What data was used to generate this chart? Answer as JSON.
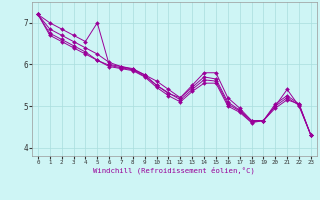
{
  "xlabel": "Windchill (Refroidissement éolien,°C)",
  "background_color": "#cef5f5",
  "grid_color": "#aadddd",
  "line_color": "#990099",
  "xlim": [
    -0.5,
    23.5
  ],
  "ylim": [
    3.8,
    7.5
  ],
  "yticks": [
    4,
    5,
    6,
    7
  ],
  "xticks": [
    0,
    1,
    2,
    3,
    4,
    5,
    6,
    7,
    8,
    9,
    10,
    11,
    12,
    13,
    14,
    15,
    16,
    17,
    18,
    19,
    20,
    21,
    22,
    23
  ],
  "series": [
    [
      7.2,
      7.0,
      6.85,
      6.7,
      6.55,
      7.0,
      6.0,
      5.95,
      5.9,
      5.75,
      5.5,
      5.3,
      5.2,
      5.5,
      5.8,
      5.8,
      5.2,
      4.95,
      4.65,
      4.65,
      5.0,
      5.4,
      5.0,
      4.3
    ],
    [
      7.2,
      6.7,
      6.55,
      6.4,
      6.25,
      6.1,
      5.95,
      5.9,
      5.85,
      5.7,
      5.45,
      5.25,
      5.1,
      5.35,
      5.55,
      5.55,
      5.0,
      4.85,
      4.6,
      4.65,
      4.95,
      5.15,
      5.05,
      4.3
    ],
    [
      7.2,
      6.85,
      6.7,
      6.55,
      6.4,
      6.25,
      6.05,
      5.95,
      5.88,
      5.75,
      5.6,
      5.4,
      5.2,
      5.45,
      5.7,
      5.65,
      5.1,
      4.9,
      4.65,
      4.65,
      5.05,
      5.25,
      5.05,
      4.3
    ],
    [
      7.2,
      6.75,
      6.6,
      6.45,
      6.3,
      6.1,
      5.98,
      5.92,
      5.87,
      5.72,
      5.5,
      5.32,
      5.15,
      5.4,
      5.63,
      5.6,
      5.05,
      4.88,
      4.62,
      4.65,
      5.0,
      5.2,
      5.02,
      4.3
    ]
  ]
}
